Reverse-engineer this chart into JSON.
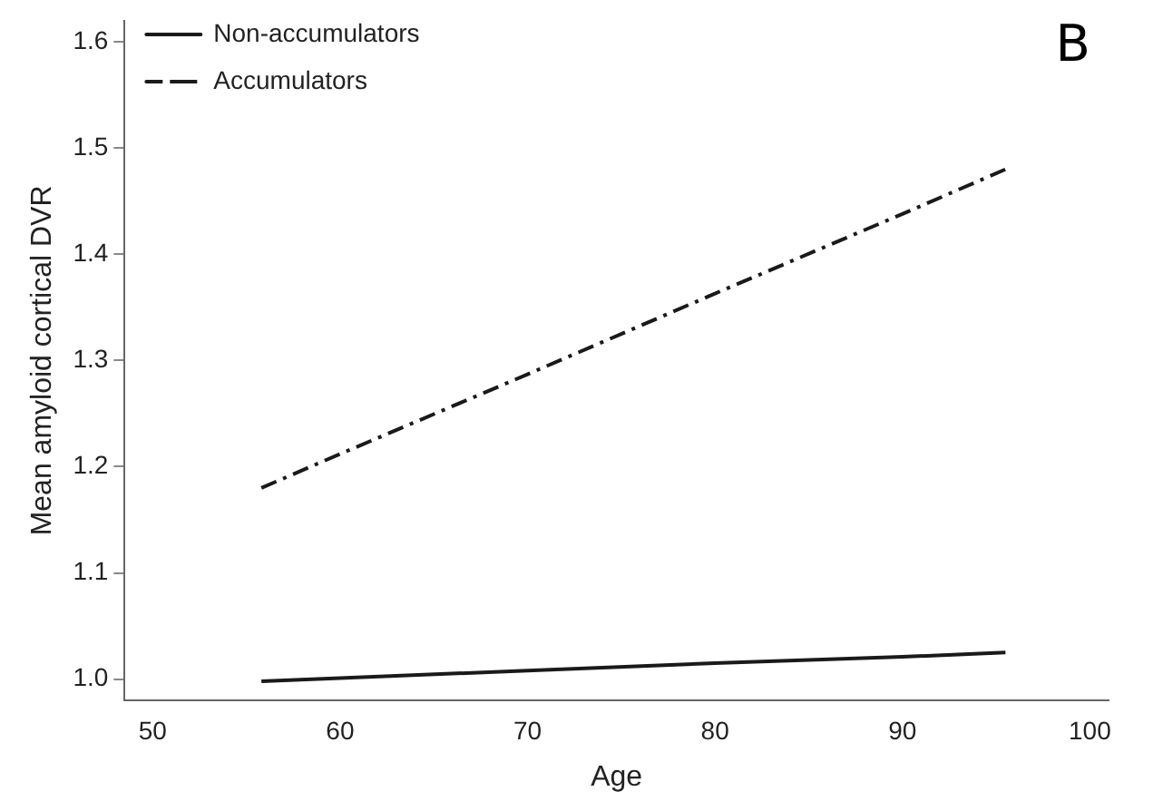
{
  "chart_data": {
    "type": "line",
    "xlabel": "Age",
    "ylabel": "Mean amyloid cortical DVR",
    "annotations": [
      "B"
    ],
    "xlim": [
      48.5,
      101
    ],
    "xticks": [
      50,
      60,
      70,
      80,
      90,
      100
    ],
    "ylim": [
      0.98,
      1.62
    ],
    "yticks": [
      {
        "value": 1,
        "label": "1.0"
      },
      {
        "value": 1.1,
        "label": "1.1"
      },
      {
        "value": 1.2,
        "label": "1.2"
      },
      {
        "value": 1.3,
        "label": "1.3"
      },
      {
        "value": 1.4,
        "label": "1.4"
      },
      {
        "value": 1.5,
        "label": "1.5"
      },
      {
        "value": 1.6,
        "label": "1.6"
      }
    ],
    "grid": false,
    "legend": "top left",
    "marker": "none",
    "series": [
      {
        "name": "Non-accumulators",
        "color": "#1a1a1a",
        "x": [
          55.8,
          60,
          70,
          80,
          90,
          95.5
        ],
        "values": [
          0.998,
          1.001,
          1.008,
          1.015,
          1.021,
          1.025
        ],
        "line_style": "solid"
      },
      {
        "name": "Accumulators",
        "color": "#1a1a1a",
        "x": [
          55.8,
          60,
          70,
          80,
          90,
          95.5
        ],
        "values": [
          1.18,
          1.212,
          1.287,
          1.363,
          1.438,
          1.48
        ],
        "line_style": "dashed"
      }
    ]
  }
}
